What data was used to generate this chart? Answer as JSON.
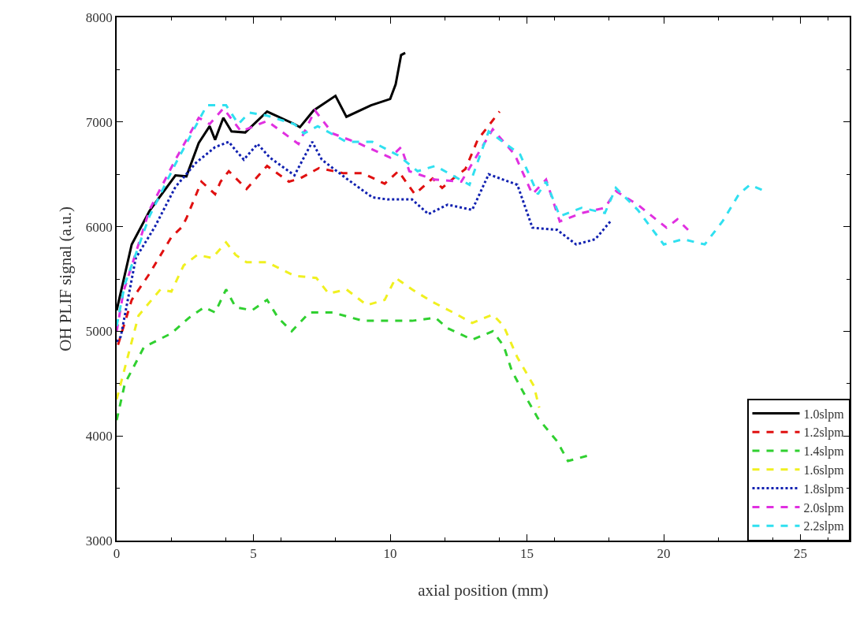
{
  "chart_data": {
    "type": "line",
    "xlabel": "axial position (mm)",
    "ylabel": "OH PLIF signal (a.u.)",
    "xlim": [
      0,
      26.8
    ],
    "xticks": [
      0,
      5,
      10,
      15,
      20,
      25
    ],
    "ylim": [
      3000,
      8000
    ],
    "yticks": [
      3000,
      4000,
      5000,
      6000,
      7000,
      8000
    ],
    "grid": false,
    "legend": "bottom right",
    "marker": "none",
    "series": [
      {
        "name": "1.0slpm",
        "color": "#000000",
        "line_style": "solid",
        "x": [
          0,
          0.55,
          1.2,
          2.15,
          2.55,
          3.0,
          3.4,
          3.6,
          3.9,
          4.2,
          4.7,
          5.5,
          6.5,
          6.7,
          7.2,
          8.0,
          8.4,
          9.3,
          10.0,
          10.2,
          10.4,
          10.55
        ],
        "values": [
          5200,
          5830,
          6150,
          6490,
          6480,
          6800,
          6960,
          6830,
          7040,
          6910,
          6900,
          7100,
          6980,
          6950,
          7110,
          7250,
          7050,
          7160,
          7220,
          7360,
          7640,
          7660
        ]
      },
      {
        "name": "1.2slpm",
        "color": "#e01010",
        "line_style": "dashed",
        "x": [
          0.05,
          0.55,
          1.2,
          2.0,
          2.4,
          2.55,
          3.1,
          3.6,
          3.8,
          4.1,
          4.75,
          5.5,
          6.3,
          6.7,
          7.4,
          8.3,
          9.0,
          9.8,
          10.3,
          10.9,
          11.55,
          11.9,
          12.4,
          12.75,
          13.2,
          14.0
        ],
        "values": [
          4870,
          5300,
          5550,
          5900,
          6000,
          6080,
          6430,
          6310,
          6430,
          6530,
          6360,
          6580,
          6430,
          6460,
          6560,
          6510,
          6510,
          6410,
          6530,
          6310,
          6460,
          6370,
          6480,
          6550,
          6830,
          7100
        ]
      },
      {
        "name": "1.4slpm",
        "color": "#30d030",
        "line_style": "dashed",
        "x": [
          0,
          0.3,
          1.0,
          2.0,
          2.65,
          3.2,
          3.6,
          4.0,
          4.35,
          4.95,
          5.5,
          5.9,
          6.4,
          7.05,
          7.9,
          9.0,
          9.75,
          10.8,
          11.65,
          12.1,
          13.0,
          13.75,
          14.15,
          14.45,
          15.05,
          15.4,
          16.1,
          16.5,
          17.2
        ],
        "values": [
          4150,
          4500,
          4850,
          4980,
          5130,
          5230,
          5180,
          5400,
          5230,
          5200,
          5300,
          5130,
          5000,
          5180,
          5180,
          5100,
          5100,
          5100,
          5130,
          5030,
          4920,
          5000,
          4860,
          4620,
          4330,
          4170,
          3950,
          3760,
          3810
        ]
      },
      {
        "name": "1.6slpm",
        "color": "#f0f020",
        "line_style": "dashed",
        "x": [
          0,
          0.8,
          1.6,
          2.0,
          2.45,
          2.95,
          3.5,
          4.0,
          4.35,
          4.75,
          5.5,
          6.5,
          7.3,
          7.75,
          8.4,
          9.15,
          9.8,
          10.2,
          10.8,
          11.55,
          12.3,
          13.0,
          13.75,
          14.15,
          14.65,
          15.25,
          15.45
        ],
        "values": [
          4350,
          5150,
          5400,
          5380,
          5630,
          5730,
          5700,
          5850,
          5730,
          5660,
          5660,
          5530,
          5510,
          5360,
          5400,
          5250,
          5300,
          5510,
          5400,
          5280,
          5180,
          5080,
          5160,
          5050,
          4750,
          4480,
          4270
        ]
      },
      {
        "name": "1.8slpm",
        "color": "#1020b0",
        "line_style": "dotted",
        "x": [
          0,
          0.15,
          0.7,
          1.4,
          2.15,
          2.9,
          3.6,
          4.1,
          4.35,
          4.65,
          5.15,
          5.6,
          6.5,
          7.15,
          7.5,
          8.4,
          9.35,
          9.9,
          10.8,
          11.4,
          12.1,
          13.0,
          13.6,
          14.65,
          15.2,
          16.1,
          16.8,
          17.5,
          18.05
        ],
        "values": [
          4900,
          4950,
          5700,
          6000,
          6380,
          6610,
          6760,
          6810,
          6730,
          6640,
          6790,
          6660,
          6490,
          6810,
          6640,
          6460,
          6280,
          6260,
          6260,
          6120,
          6210,
          6160,
          6500,
          6400,
          5990,
          5970,
          5830,
          5880,
          6050
        ]
      },
      {
        "name": "2.0slpm",
        "color": "#e030e0",
        "line_style": "dashed",
        "x": [
          0,
          0.25,
          1.2,
          2.15,
          3.0,
          3.4,
          3.9,
          4.55,
          5.5,
          6.65,
          7.25,
          7.9,
          8.9,
          10.0,
          10.4,
          10.7,
          11.6,
          12.6,
          13.75,
          14.55,
          15.2,
          15.7,
          16.2,
          17.0,
          17.85,
          18.25,
          19.05,
          20.1,
          20.5,
          21.0
        ],
        "values": [
          5000,
          5380,
          6160,
          6640,
          7040,
          6980,
          7130,
          6910,
          7010,
          6790,
          7110,
          6890,
          6790,
          6660,
          6760,
          6530,
          6450,
          6430,
          6930,
          6690,
          6310,
          6450,
          6050,
          6130,
          6180,
          6340,
          6210,
          5990,
          6070,
          5940
        ]
      },
      {
        "name": "2.2slpm",
        "color": "#30e0f0",
        "line_style": "dashed",
        "x": [
          0,
          0.3,
          1.2,
          2.15,
          3.3,
          4.0,
          4.45,
          4.85,
          5.5,
          6.5,
          6.85,
          7.35,
          8.4,
          9.35,
          10.3,
          11.0,
          11.65,
          12.9,
          13.6,
          14.75,
          15.4,
          15.7,
          16.2,
          17.0,
          17.85,
          18.25,
          19.05,
          20.0,
          20.7,
          21.5,
          22.15,
          22.75,
          23.15,
          23.7
        ],
        "values": [
          5050,
          5450,
          6100,
          6600,
          7160,
          7160,
          6980,
          7090,
          7060,
          6980,
          6890,
          6960,
          6810,
          6810,
          6680,
          6530,
          6580,
          6400,
          6910,
          6690,
          6310,
          6430,
          6100,
          6180,
          6130,
          6370,
          6160,
          5830,
          5880,
          5830,
          6050,
          6310,
          6400,
          6340
        ]
      }
    ]
  }
}
